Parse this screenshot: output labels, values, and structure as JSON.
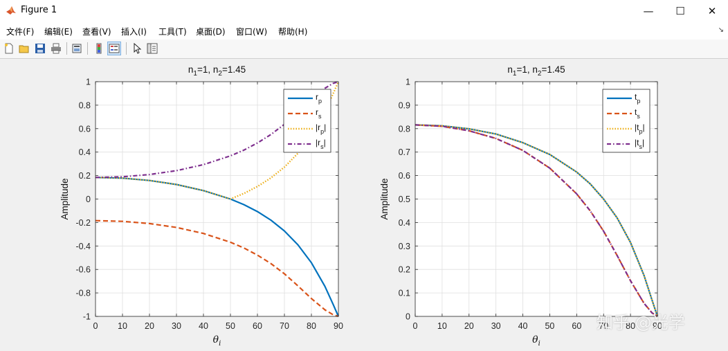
{
  "window": {
    "title": "Figure 1",
    "minimize": "—",
    "maximize": "☐",
    "close": "✕"
  },
  "menu": {
    "items": [
      "文件(F)",
      "编辑(E)",
      "查看(V)",
      "插入(I)",
      "工具(T)",
      "桌面(D)",
      "窗口(W)",
      "帮助(H)"
    ],
    "corner": "↘"
  },
  "toolbar": {
    "buttons": [
      "new-figure-icon",
      "open-file-icon",
      "save-icon",
      "print-icon",
      "print-preview-icon",
      "colorbar-icon",
      "legend-icon",
      "pointer-icon",
      "property-editor-icon"
    ]
  },
  "watermark": "知乎 @光学",
  "colors": {
    "rp": "#0072bd",
    "rs": "#d95319",
    "abs_rp": "#edb120",
    "abs_rs": "#7e2f8e"
  },
  "chart_data": [
    {
      "type": "line",
      "title": "n1=1, n2=1.45",
      "title_main1": "n",
      "title_sub1": "1",
      "title_mid": "=1, n",
      "title_sub2": "2",
      "title_end": "=1.45",
      "xlabel": "θi",
      "xlabel_main": "θ",
      "xlabel_sub": "i",
      "ylabel": "Amplitude",
      "xlim": [
        0,
        90
      ],
      "ylim": [
        -1,
        1
      ],
      "xticks": [
        "0",
        "10",
        "20",
        "30",
        "40",
        "50",
        "60",
        "70",
        "80",
        "90"
      ],
      "yticks": [
        "-1",
        "-0.8",
        "-0.6",
        "-0.4",
        "-0.2",
        "0",
        "0.2",
        "0.4",
        "0.6",
        "0.8",
        "1"
      ],
      "grid": true,
      "legend_position": "top-right",
      "x": [
        0,
        10,
        20,
        30,
        40,
        50,
        55,
        60,
        65,
        70,
        75,
        80,
        85,
        88,
        90
      ],
      "series": [
        {
          "name": "rp",
          "label_main": "r",
          "label_sub": "p",
          "style": "solid",
          "values": [
            0.184,
            0.178,
            0.158,
            0.124,
            0.072,
            0.0,
            -0.048,
            -0.107,
            -0.18,
            -0.272,
            -0.39,
            -0.543,
            -0.744,
            -0.895,
            -1.0
          ]
        },
        {
          "name": "rs",
          "label_main": "r",
          "label_sub": "s",
          "style": "dashed",
          "values": [
            -0.184,
            -0.19,
            -0.209,
            -0.242,
            -0.293,
            -0.368,
            -0.417,
            -0.478,
            -0.55,
            -0.637,
            -0.74,
            -0.848,
            -0.944,
            -0.985,
            -1.0
          ]
        },
        {
          "name": "|rp|",
          "label_main": "|r",
          "label_sub": "p",
          "label_end": "|",
          "style": "dotted",
          "values": [
            0.184,
            0.178,
            0.158,
            0.124,
            0.072,
            0.0,
            0.048,
            0.107,
            0.18,
            0.272,
            0.39,
            0.543,
            0.744,
            0.895,
            1.0
          ]
        },
        {
          "name": "|rs|",
          "label_main": "|r",
          "label_sub": "s",
          "label_end": "|",
          "style": "dashdot",
          "values": [
            0.184,
            0.19,
            0.209,
            0.242,
            0.293,
            0.368,
            0.417,
            0.478,
            0.55,
            0.637,
            0.74,
            0.848,
            0.944,
            0.985,
            1.0
          ]
        }
      ]
    },
    {
      "type": "line",
      "title": "n1=1, n2=1.45",
      "title_main1": "n",
      "title_sub1": "1",
      "title_mid": "=1, n",
      "title_sub2": "2",
      "title_end": "=1.45",
      "xlabel": "θi",
      "xlabel_main": "θ",
      "xlabel_sub": "i",
      "ylabel": "Amplitude",
      "xlim": [
        0,
        90
      ],
      "ylim": [
        0,
        1
      ],
      "xticks": [
        "0",
        "10",
        "20",
        "30",
        "40",
        "50",
        "60",
        "70",
        "80",
        "90"
      ],
      "yticks": [
        "0",
        "0.1",
        "0.2",
        "0.3",
        "0.4",
        "0.5",
        "0.6",
        "0.7",
        "0.8",
        "0.9",
        "1"
      ],
      "grid": true,
      "legend_position": "top-right",
      "x": [
        0,
        10,
        20,
        30,
        40,
        50,
        60,
        65,
        70,
        75,
        80,
        85,
        88,
        90
      ],
      "series": [
        {
          "name": "tp",
          "label_main": "t",
          "label_sub": "p",
          "style": "solid",
          "values": [
            0.816,
            0.812,
            0.799,
            0.777,
            0.74,
            0.69,
            0.615,
            0.565,
            0.5,
            0.42,
            0.315,
            0.175,
            0.07,
            0.0
          ]
        },
        {
          "name": "ts",
          "label_main": "t",
          "label_sub": "s",
          "style": "dashed",
          "values": [
            0.816,
            0.81,
            0.791,
            0.758,
            0.707,
            0.632,
            0.522,
            0.45,
            0.363,
            0.26,
            0.152,
            0.056,
            0.015,
            0.0
          ]
        },
        {
          "name": "|tp|",
          "label_main": "|t",
          "label_sub": "p",
          "label_end": "|",
          "style": "dotted",
          "values": [
            0.816,
            0.812,
            0.799,
            0.777,
            0.74,
            0.69,
            0.615,
            0.565,
            0.5,
            0.42,
            0.315,
            0.175,
            0.07,
            0.0
          ]
        },
        {
          "name": "|ts|",
          "label_main": "|t",
          "label_sub": "s",
          "label_end": "|",
          "style": "dashdot",
          "values": [
            0.816,
            0.81,
            0.791,
            0.758,
            0.707,
            0.632,
            0.522,
            0.45,
            0.363,
            0.26,
            0.152,
            0.056,
            0.015,
            0.0
          ]
        }
      ]
    }
  ]
}
